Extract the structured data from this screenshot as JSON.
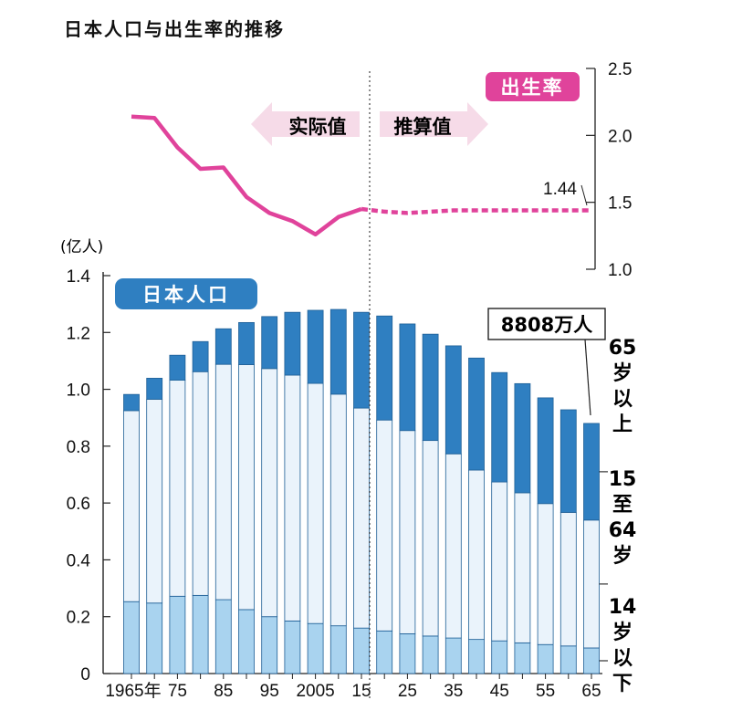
{
  "title": "日本人口与出生率的推移",
  "chart_data": [
    {
      "type": "bar",
      "stacked": true,
      "title": "日本人口",
      "ylabel": "(亿人)",
      "ylim": [
        0,
        1.4
      ],
      "yticks": [
        "0",
        "0.2",
        "0.4",
        "0.6",
        "0.8",
        "1.0",
        "1.2",
        "1.4"
      ],
      "x_tick_labels": [
        "1965年",
        "75",
        "85",
        "95",
        "2005",
        "15",
        "25",
        "35",
        "45",
        "55",
        "65"
      ],
      "categories": [
        1965,
        1970,
        1975,
        1980,
        1985,
        1990,
        1995,
        2000,
        2005,
        2010,
        2015,
        2020,
        2025,
        2030,
        2035,
        2040,
        2045,
        2050,
        2055,
        2060,
        2065
      ],
      "series": [
        {
          "name": "14岁以下",
          "color": "#a9d3ef",
          "values": [
            0.253,
            0.248,
            0.272,
            0.275,
            0.26,
            0.225,
            0.2,
            0.185,
            0.176,
            0.168,
            0.16,
            0.15,
            0.14,
            0.132,
            0.125,
            0.12,
            0.115,
            0.108,
            0.102,
            0.097,
            0.09
          ]
        },
        {
          "name": "15至64岁",
          "color": "#eaf3fb",
          "values": [
            0.672,
            0.717,
            0.76,
            0.787,
            0.828,
            0.862,
            0.873,
            0.865,
            0.845,
            0.815,
            0.774,
            0.742,
            0.715,
            0.688,
            0.648,
            0.596,
            0.559,
            0.528,
            0.496,
            0.47,
            0.45
          ]
        },
        {
          "name": "65岁以上",
          "color": "#2f7fc1",
          "values": [
            0.057,
            0.074,
            0.088,
            0.106,
            0.125,
            0.148,
            0.183,
            0.221,
            0.257,
            0.298,
            0.337,
            0.366,
            0.375,
            0.374,
            0.38,
            0.394,
            0.385,
            0.384,
            0.372,
            0.361,
            0.34
          ]
        }
      ],
      "annotation": "8808万人",
      "side_labels": [
        "65\n岁\n以\n上",
        "15\n至\n64\n岁",
        "14\n岁\n以\n下"
      ]
    },
    {
      "type": "line",
      "title": "出生率",
      "ylim": [
        1.0,
        2.5
      ],
      "yticks": [
        "1.0",
        "1.5",
        "2.0",
        "2.5"
      ],
      "x": [
        1965,
        1970,
        1975,
        1980,
        1985,
        1990,
        1995,
        2000,
        2005,
        2010,
        2015,
        2020,
        2025,
        2030,
        2035,
        2040,
        2045,
        2050,
        2055,
        2060,
        2065
      ],
      "actual_values": [
        2.14,
        2.13,
        1.91,
        1.75,
        1.76,
        1.54,
        1.42,
        1.36,
        1.26,
        1.39,
        1.45
      ],
      "projected_values": [
        1.45,
        1.43,
        1.42,
        1.43,
        1.44,
        1.44,
        1.44,
        1.44,
        1.44,
        1.44,
        1.44
      ],
      "annotation": "1.44",
      "color": "#e0439b",
      "label_actual": "实际值",
      "label_projected": "推算值"
    }
  ]
}
